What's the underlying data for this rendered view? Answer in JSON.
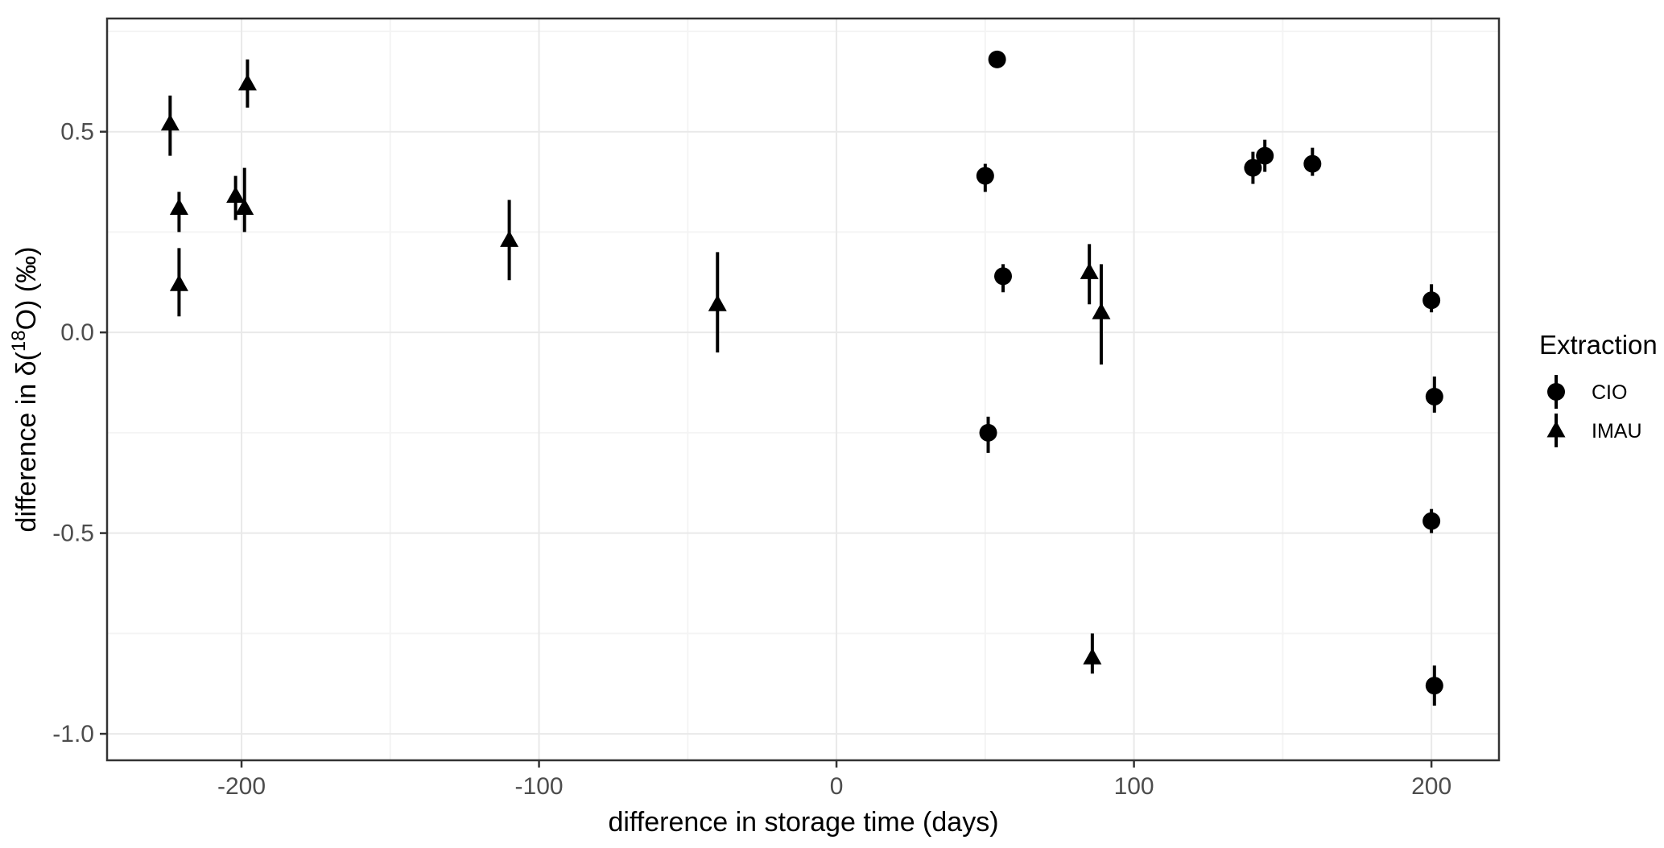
{
  "chart_data": {
    "type": "scatter",
    "title": "",
    "xlabel": "difference in storage time (days)",
    "ylabel": {
      "prefix": "difference in δ(",
      "superscript": "18",
      "suffix": "O) (‰)"
    },
    "xlim": [
      -245.2,
      222.7
    ],
    "ylim": [
      -1.066,
      0.782
    ],
    "grid": "on",
    "x_axis": {
      "major_ticks": [
        -200,
        -100,
        0,
        100,
        200
      ],
      "major_labels": [
        "-200",
        "-100",
        "0",
        "100",
        "200"
      ],
      "minor_ticks": [
        -150,
        -50,
        50,
        150
      ]
    },
    "y_axis": {
      "major_ticks": [
        0.5,
        0.0,
        -0.5,
        -1.0
      ],
      "major_labels": [
        "0.5",
        "0.0",
        "-0.5",
        "-1.0"
      ],
      "minor_ticks": [
        0.75,
        0.25,
        -0.25,
        -0.75
      ]
    },
    "legend": {
      "title": "Extraction",
      "position": "right",
      "entries": [
        {
          "label": "CIO",
          "marker": "circle"
        },
        {
          "label": "IMAU",
          "marker": "triangle"
        }
      ]
    },
    "series": [
      {
        "name": "CIO",
        "marker": "circle",
        "points": [
          {
            "x": 54,
            "y": 0.68,
            "ymin": 0.66,
            "ymax": 0.7
          },
          {
            "x": 50,
            "y": 0.39,
            "ymin": 0.35,
            "ymax": 0.42
          },
          {
            "x": 56,
            "y": 0.14,
            "ymin": 0.1,
            "ymax": 0.17
          },
          {
            "x": 51,
            "y": -0.25,
            "ymin": -0.3,
            "ymax": -0.21
          },
          {
            "x": 140,
            "y": 0.41,
            "ymin": 0.37,
            "ymax": 0.45
          },
          {
            "x": 144,
            "y": 0.44,
            "ymin": 0.4,
            "ymax": 0.48
          },
          {
            "x": 160,
            "y": 0.42,
            "ymin": 0.39,
            "ymax": 0.46
          },
          {
            "x": 200,
            "y": 0.08,
            "ymin": 0.05,
            "ymax": 0.12
          },
          {
            "x": 201,
            "y": -0.16,
            "ymin": -0.2,
            "ymax": -0.11
          },
          {
            "x": 200,
            "y": -0.47,
            "ymin": -0.5,
            "ymax": -0.44
          },
          {
            "x": 201,
            "y": -0.88,
            "ymin": -0.93,
            "ymax": -0.83
          }
        ]
      },
      {
        "name": "IMAU",
        "marker": "triangle",
        "points": [
          {
            "x": -224,
            "y": 0.52,
            "ymin": 0.44,
            "ymax": 0.59
          },
          {
            "x": -221,
            "y": 0.31,
            "ymin": 0.25,
            "ymax": 0.35
          },
          {
            "x": -221,
            "y": 0.12,
            "ymin": 0.04,
            "ymax": 0.21
          },
          {
            "x": -198,
            "y": 0.62,
            "ymin": 0.56,
            "ymax": 0.68
          },
          {
            "x": -202,
            "y": 0.34,
            "ymin": 0.28,
            "ymax": 0.39
          },
          {
            "x": -199,
            "y": 0.31,
            "ymin": 0.25,
            "ymax": 0.41
          },
          {
            "x": -110,
            "y": 0.23,
            "ymin": 0.13,
            "ymax": 0.33
          },
          {
            "x": -40,
            "y": 0.07,
            "ymin": -0.05,
            "ymax": 0.2
          },
          {
            "x": 85,
            "y": 0.15,
            "ymin": 0.07,
            "ymax": 0.22
          },
          {
            "x": 89,
            "y": 0.05,
            "ymin": -0.08,
            "ymax": 0.17
          },
          {
            "x": 86,
            "y": -0.81,
            "ymin": -0.85,
            "ymax": -0.75
          }
        ]
      }
    ]
  }
}
